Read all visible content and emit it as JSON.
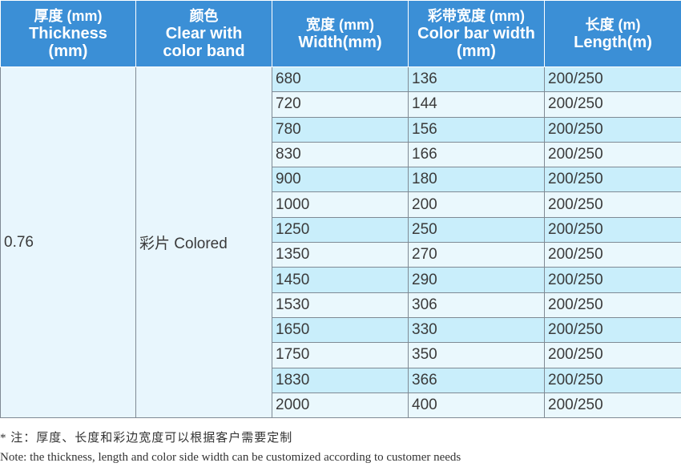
{
  "header": {
    "thickness_zh": "厚度 (mm)",
    "thickness_en": "Thickness",
    "thickness_unit": "(mm)",
    "color_zh": "颜色",
    "color_en": "Clear with",
    "color_en2": "color band",
    "width_zh": "宽度 (mm)",
    "width_en": "Width(mm)",
    "bar_zh": "彩带宽度 (mm)",
    "bar_en": "Color bar width",
    "bar_unit": "(mm)",
    "length_zh": "长度 (m)",
    "length_en": "Length(m)"
  },
  "thickness_value": "0.76",
  "color_value": "彩片 Colored",
  "rows": [
    {
      "width": "680",
      "bar": "136",
      "length": "200/250"
    },
    {
      "width": "720",
      "bar": "144",
      "length": "200/250"
    },
    {
      "width": "780",
      "bar": "156",
      "length": "200/250"
    },
    {
      "width": "830",
      "bar": "166",
      "length": "200/250"
    },
    {
      "width": "900",
      "bar": "180",
      "length": "200/250"
    },
    {
      "width": "1000",
      "bar": "200",
      "length": "200/250"
    },
    {
      "width": "1250",
      "bar": "250",
      "length": "200/250"
    },
    {
      "width": "1350",
      "bar": "270",
      "length": "200/250"
    },
    {
      "width": "1450",
      "bar": "290",
      "length": "200/250"
    },
    {
      "width": "1530",
      "bar": "306",
      "length": "200/250"
    },
    {
      "width": "1650",
      "bar": "330",
      "length": "200/250"
    },
    {
      "width": "1750",
      "bar": "350",
      "length": "200/250"
    },
    {
      "width": "1830",
      "bar": "366",
      "length": "200/250"
    },
    {
      "width": "2000",
      "bar": "400",
      "length": "200/250"
    }
  ],
  "notes": {
    "zh": "* 注：厚度、长度和彩边宽度可以根据客户需要定制",
    "en": "Note: the thickness, length and color side width can be customized according to customer needs"
  },
  "colors": {
    "header_bg": "#3b8fd6",
    "row_dark": "#c9eefb",
    "row_light": "#eaf8fd",
    "merged_bg": "#e8f6fd"
  }
}
